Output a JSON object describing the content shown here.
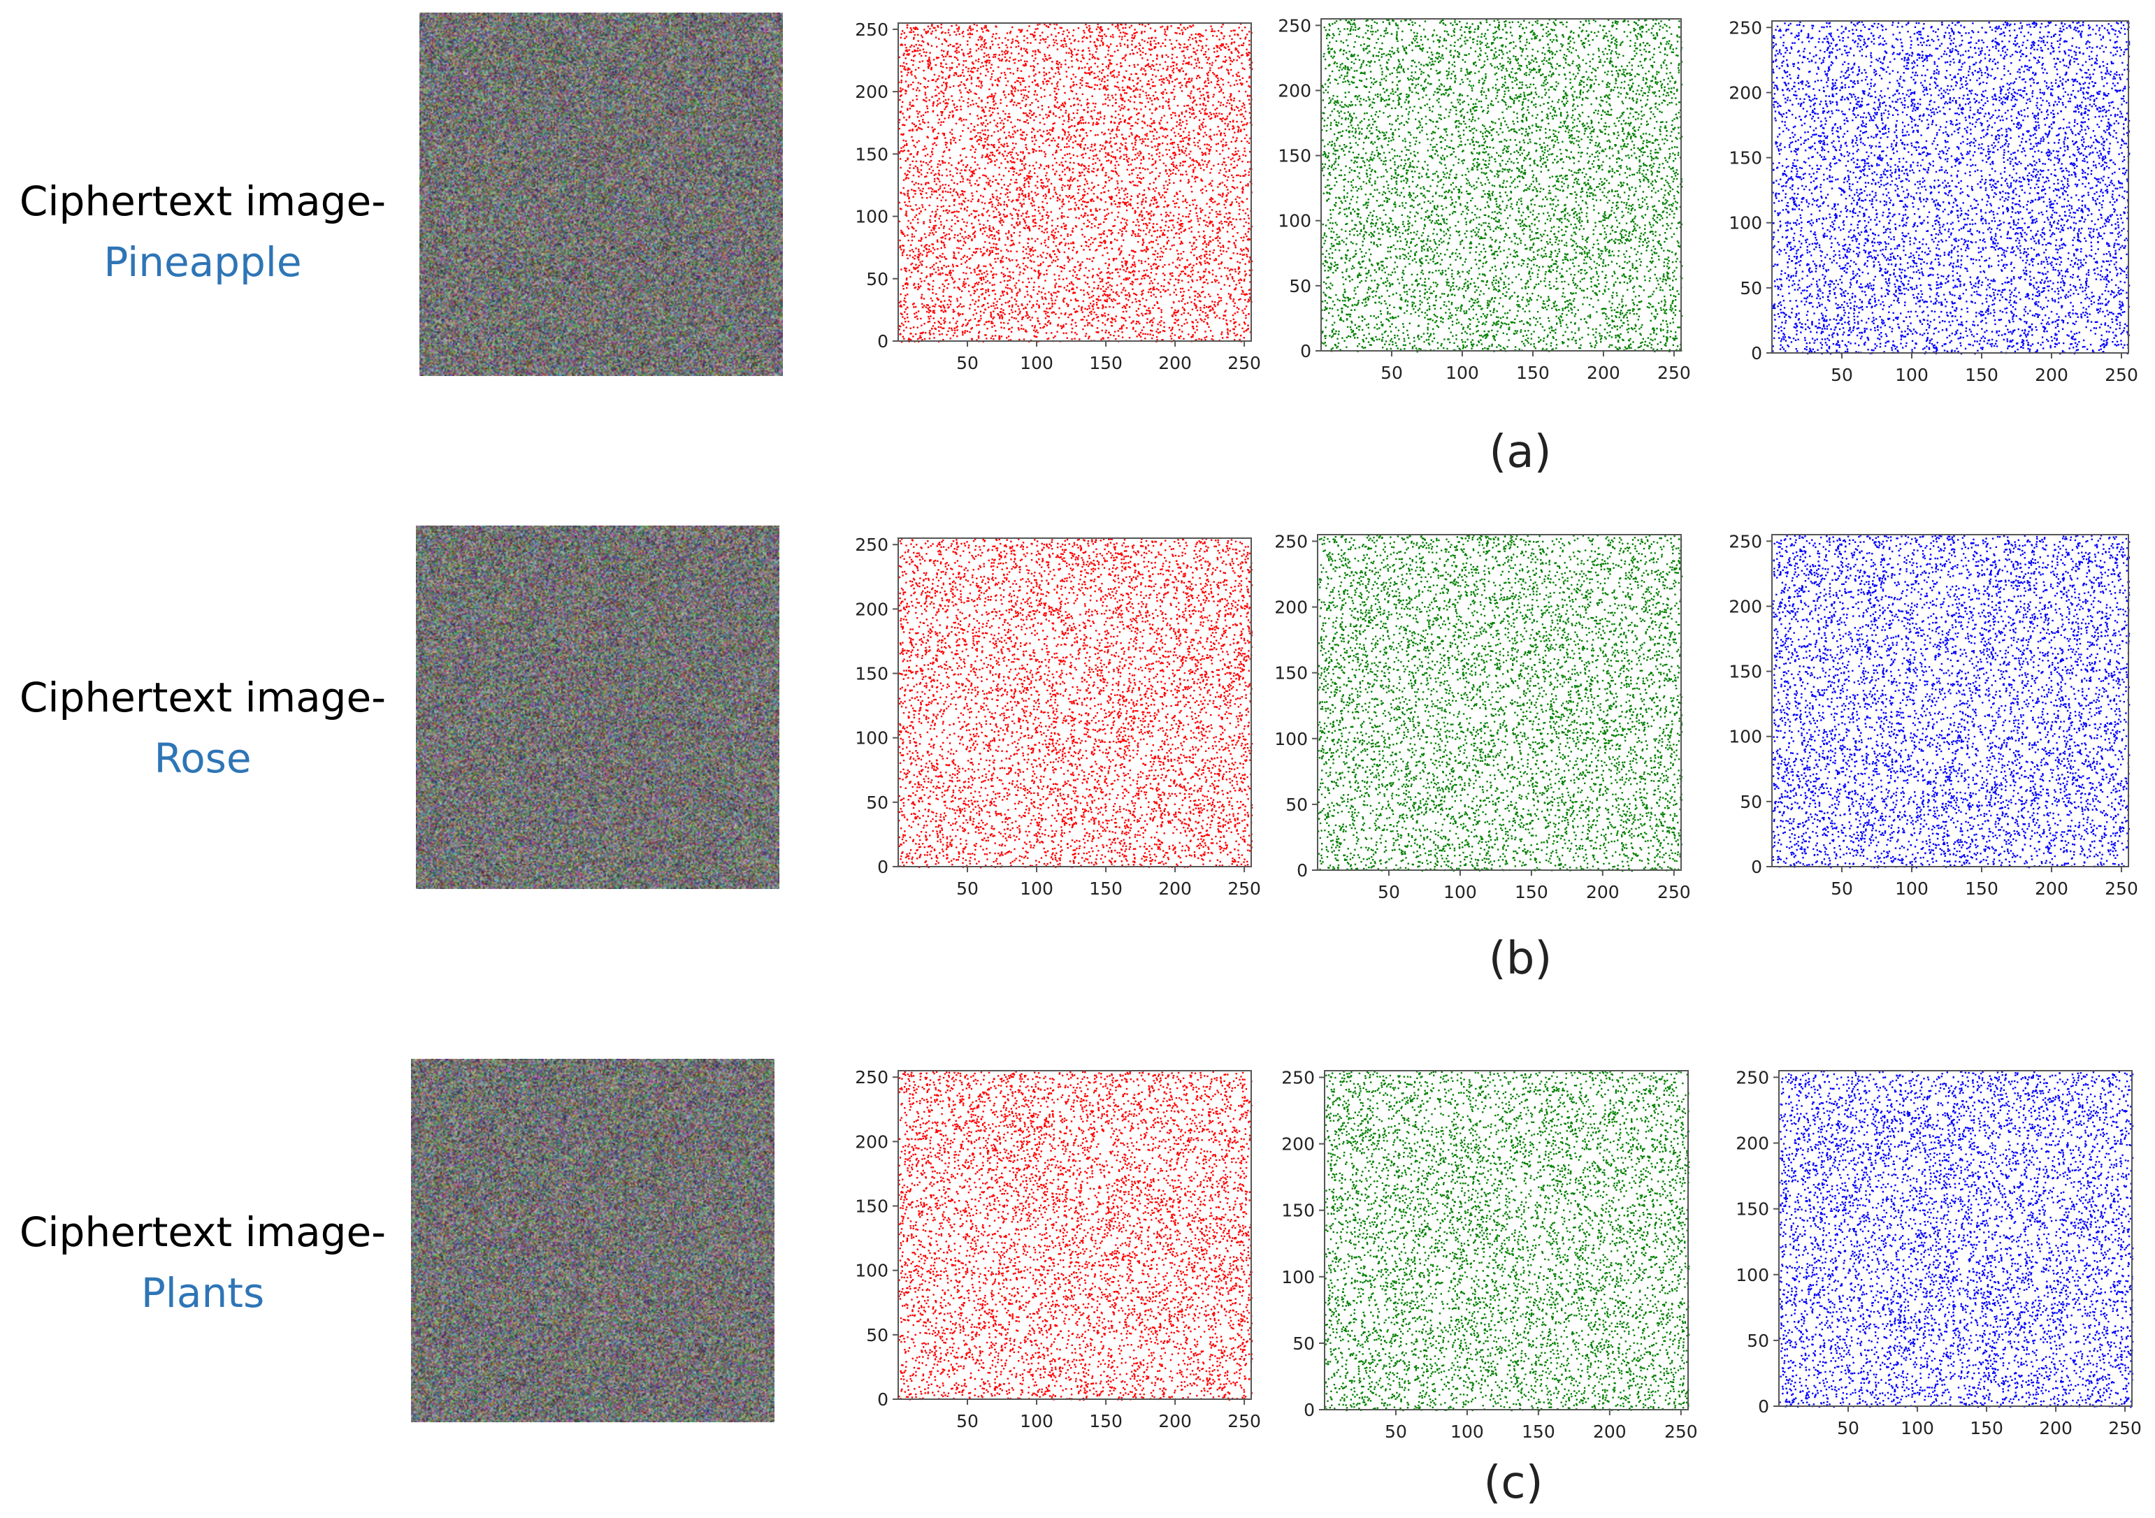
{
  "rows": [
    {
      "label_line1": "Ciphertext image-",
      "label_line2": "Pineapple",
      "caption": "(a)",
      "image": "ciphertext-noise-image",
      "charts": [
        {
          "channel": "red",
          "color": "#ff0000"
        },
        {
          "channel": "green",
          "color": "#008000"
        },
        {
          "channel": "blue",
          "color": "#0000ff"
        }
      ]
    },
    {
      "label_line1": "Ciphertext image-",
      "label_line2": "Rose",
      "caption": "(b)",
      "image": "ciphertext-noise-image",
      "charts": [
        {
          "channel": "red",
          "color": "#ff0000"
        },
        {
          "channel": "green",
          "color": "#008000"
        },
        {
          "channel": "blue",
          "color": "#0000ff"
        }
      ]
    },
    {
      "label_line1": "Ciphertext image-",
      "label_line2": "Plants",
      "caption": "(c)",
      "image": "ciphertext-noise-image",
      "charts": [
        {
          "channel": "red",
          "color": "#ff0000"
        },
        {
          "channel": "green",
          "color": "#008000"
        },
        {
          "channel": "blue",
          "color": "#0000ff"
        }
      ]
    }
  ],
  "chart_data": {
    "type": "scatter",
    "description_of_points": "uniformly distributed points across full range",
    "xlim": [
      0,
      255
    ],
    "ylim": [
      0,
      255
    ],
    "xticks": [
      50,
      100,
      150,
      200,
      250
    ],
    "yticks": [
      0,
      50,
      100,
      150,
      200,
      250
    ],
    "grid": false
  }
}
